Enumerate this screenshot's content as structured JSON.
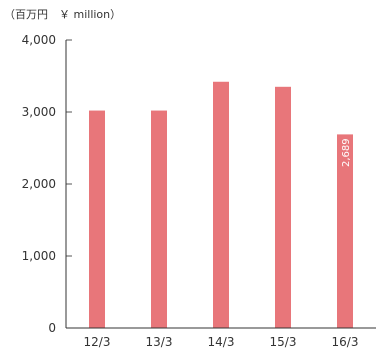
{
  "unit_label": "（百万円　￥ million）",
  "colors": {
    "bar": "#E8767A",
    "axis": "#333333",
    "tick": "#555555"
  },
  "chart_data": {
    "type": "bar",
    "title": "",
    "xlabel": "",
    "ylabel": "",
    "categories": [
      "12/3",
      "13/3",
      "14/3",
      "15/3",
      "16/3"
    ],
    "values": [
      3020,
      3020,
      3420,
      3350,
      2689
    ],
    "ylim": [
      0,
      4000
    ],
    "yticks": [
      0,
      1000,
      2000,
      3000,
      4000
    ],
    "ytick_labels": [
      "0",
      "1,000",
      "2,000",
      "3,000",
      "4,000"
    ],
    "data_labels": [
      null,
      null,
      null,
      null,
      "2,689"
    ],
    "grid": false,
    "legend": "none"
  }
}
